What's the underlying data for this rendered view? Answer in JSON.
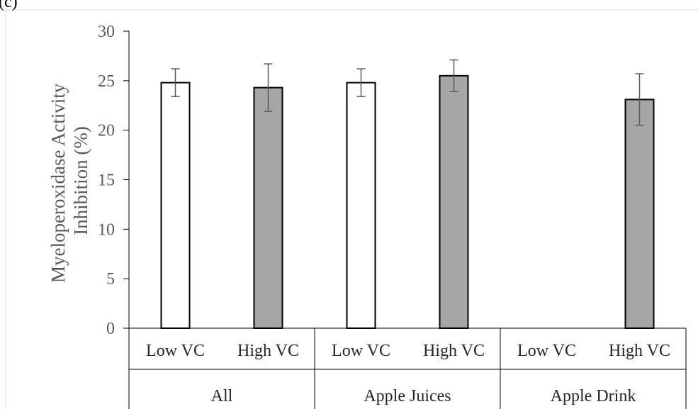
{
  "panel_label": "(c)",
  "colors": {
    "low_vc_fill": "#ffffff",
    "high_vc_fill": "#a6a6a6",
    "bar_stroke": "#000000",
    "error_bar": "#595959",
    "axis": "#000000",
    "frame": "#d9d9d9"
  },
  "chart_data": {
    "type": "bar",
    "ylabel_line1": "Myeloperoxidase Activity",
    "ylabel_line2": "Inhibition (%)",
    "ylim": [
      0,
      30
    ],
    "yticks": [
      "0",
      "5",
      "10",
      "15",
      "20",
      "25",
      "30"
    ],
    "grid": false,
    "groups": [
      "All",
      "Apple Juices",
      "Apple Drink"
    ],
    "categories": [
      "Low VC",
      "High VC",
      "Low VC",
      "High VC",
      "Low VC",
      "High VC"
    ],
    "category_group": [
      0,
      0,
      1,
      1,
      2,
      2
    ],
    "values": [
      24.8,
      24.3,
      24.8,
      25.5,
      null,
      23.1
    ],
    "errors": [
      1.4,
      2.4,
      1.4,
      1.6,
      null,
      2.6
    ],
    "fill_keys": [
      "low_vc_fill",
      "high_vc_fill",
      "low_vc_fill",
      "high_vc_fill",
      "low_vc_fill",
      "high_vc_fill"
    ]
  }
}
